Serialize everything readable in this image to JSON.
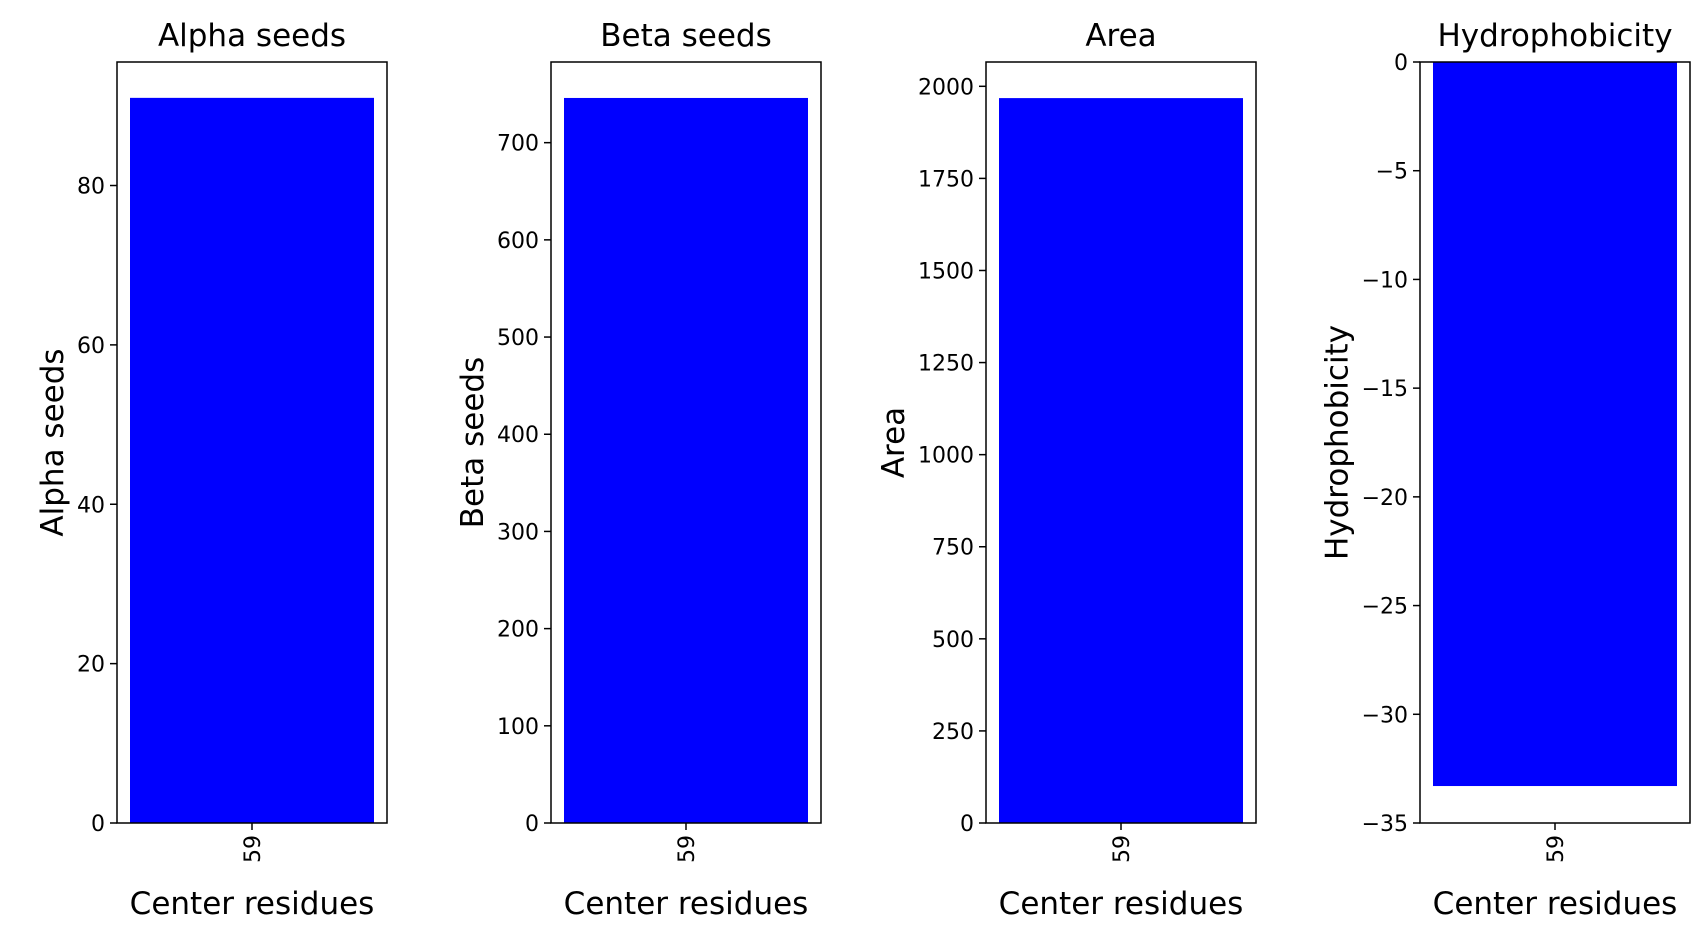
{
  "chart_data": [
    {
      "type": "bar",
      "title": "Alpha seeds",
      "xlabel": "Center residues",
      "ylabel": "Alpha seeds",
      "categories": [
        "59"
      ],
      "values": [
        91
      ],
      "ylim": [
        0,
        95.5
      ],
      "yticks": [
        0,
        20,
        40,
        60,
        80
      ],
      "color": "#0000ff",
      "grid": false
    },
    {
      "type": "bar",
      "title": "Beta seeds",
      "xlabel": "Center residues",
      "ylabel": "Beta seeds",
      "categories": [
        "59"
      ],
      "values": [
        746
      ],
      "ylim": [
        0,
        783
      ],
      "yticks": [
        0,
        100,
        200,
        300,
        400,
        500,
        600,
        700
      ],
      "color": "#0000ff",
      "grid": false
    },
    {
      "type": "bar",
      "title": "Area",
      "xlabel": "Center residues",
      "ylabel": "Area",
      "categories": [
        "59"
      ],
      "values": [
        1968
      ],
      "ylim": [
        0,
        2066
      ],
      "yticks": [
        0,
        250,
        500,
        750,
        1000,
        1250,
        1500,
        1750,
        2000
      ],
      "yticklabels": [
        "0",
        "250",
        "500",
        "750",
        "1000",
        "1250",
        "1500",
        "1750",
        "2000"
      ],
      "color": "#0000ff",
      "grid": false
    },
    {
      "type": "bar",
      "title": "Hydrophobicity",
      "xlabel": "Center residues",
      "ylabel": "Hydrophobicity",
      "categories": [
        "59"
      ],
      "values": [
        -33.3
      ],
      "ylim": [
        -35,
        0
      ],
      "yticks": [
        0,
        -5,
        -10,
        -15,
        -20,
        -25,
        -30,
        -35
      ],
      "yticklabels": [
        "0",
        "−5",
        "−10",
        "−15",
        "−20",
        "−25",
        "−30",
        "−35"
      ],
      "color": "#0000ff",
      "grid": false
    }
  ]
}
